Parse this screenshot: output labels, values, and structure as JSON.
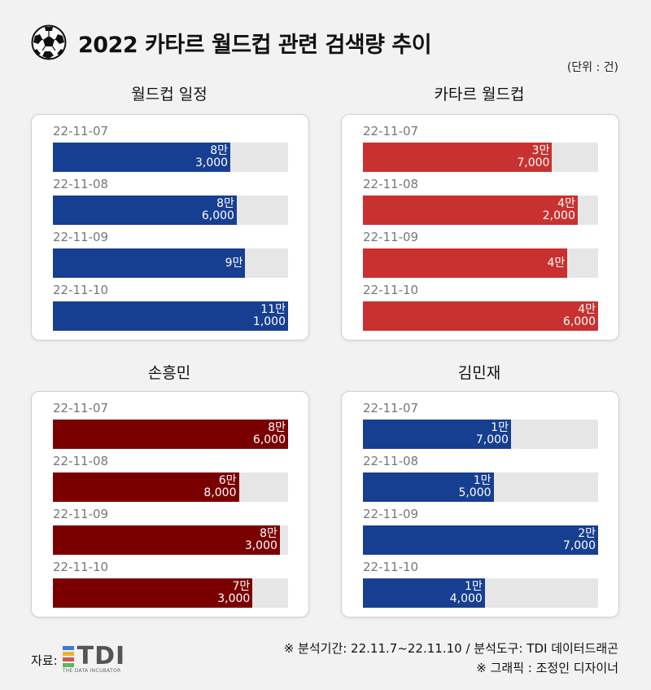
{
  "header": {
    "title": "2022 카타르 월드컵 관련 검색량 추이",
    "unit": "(단위 : 건)"
  },
  "colors": {
    "blue": "#173f91",
    "red": "#c8312f",
    "darkred": "#7a0000",
    "track": "#e6e6e6"
  },
  "chart_data": [
    {
      "type": "bar",
      "title": "월드컵 일정",
      "color": "#173f91",
      "xlim": [
        0,
        110000
      ],
      "categories": [
        "22-11-07",
        "22-11-08",
        "22-11-09",
        "22-11-10"
      ],
      "values": [
        83000,
        86000,
        90000,
        111000
      ],
      "labels": [
        [
          "8만",
          "3,000"
        ],
        [
          "8만",
          "6,000"
        ],
        [
          "9만"
        ],
        [
          "11만",
          "1,000"
        ]
      ]
    },
    {
      "type": "bar",
      "title": "카타르 월드컵",
      "color": "#c8312f",
      "xlim": [
        0,
        46000
      ],
      "categories": [
        "22-11-07",
        "22-11-08",
        "22-11-09",
        "22-11-10"
      ],
      "values": [
        37000,
        42000,
        40000,
        46000
      ],
      "labels": [
        [
          "3만",
          "7,000"
        ],
        [
          "4만",
          "2,000"
        ],
        [
          "4만"
        ],
        [
          "4만",
          "6,000"
        ]
      ]
    },
    {
      "type": "bar",
      "title": "손흥민",
      "color": "#7a0000",
      "xlim": [
        0,
        86000
      ],
      "categories": [
        "22-11-07",
        "22-11-08",
        "22-11-09",
        "22-11-10"
      ],
      "values": [
        86000,
        68000,
        83000,
        73000
      ],
      "labels": [
        [
          "8만",
          "6,000"
        ],
        [
          "6만",
          "8,000"
        ],
        [
          "8만",
          "3,000"
        ],
        [
          "7만",
          "3,000"
        ]
      ]
    },
    {
      "type": "bar",
      "title": "김민재",
      "color": "#173f91",
      "xlim": [
        0,
        27000
      ],
      "categories": [
        "22-11-07",
        "22-11-08",
        "22-11-09",
        "22-11-10"
      ],
      "values": [
        17000,
        15000,
        27000,
        14000
      ],
      "labels": [
        [
          "1만",
          "7,000"
        ],
        [
          "1만",
          "5,000"
        ],
        [
          "2만",
          "7,000"
        ],
        [
          "1만",
          "4,000"
        ]
      ]
    }
  ],
  "footer": {
    "source_label": "자료:",
    "logo_text": "TDI",
    "logo_sub": "THE DATA INCUBATOR",
    "note1": "※ 분석기간: 22.11.7~22.11.10  / 분석도구: TDI 데이터드래곤",
    "note2": "※ 그래픽 : 조정인 디자이너"
  }
}
